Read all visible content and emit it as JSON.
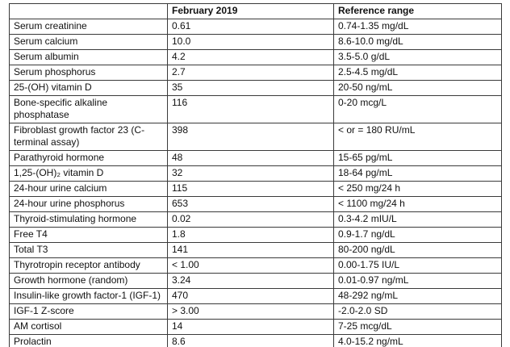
{
  "table": {
    "columns": [
      "",
      "February 2019",
      "Reference range"
    ],
    "rows": [
      {
        "label": "Serum creatinine",
        "value": "0.61",
        "ref": "0.74-1.35 mg/dL"
      },
      {
        "label": "Serum calcium",
        "value": "10.0",
        "ref": "8.6-10.0 mg/dL"
      },
      {
        "label": "Serum albumin",
        "value": "4.2",
        "ref": "3.5-5.0 g/dL"
      },
      {
        "label": "Serum phosphorus",
        "value": "2.7",
        "ref": "2.5-4.5 mg/dL"
      },
      {
        "label": "25-(OH) vitamin D",
        "value": "35",
        "ref": "20-50 ng/mL"
      },
      {
        "label": "Bone-specific alkaline phosphatase",
        "value": "116",
        "ref": "0-20 mcg/L"
      },
      {
        "label": "Fibroblast growth factor 23 (C-terminal assay)",
        "value": "398",
        "ref": "< or = 180 RU/mL"
      },
      {
        "label": "Parathyroid hormone",
        "value": "48",
        "ref": "15-65 pg/mL"
      },
      {
        "label": "1,25-(OH)₂ vitamin D",
        "value": "32",
        "ref": "18-64 pg/mL"
      },
      {
        "label": "24-hour urine calcium",
        "value": "115",
        "ref": "< 250 mg/24 h"
      },
      {
        "label": "24-hour urine phosphorus",
        "value": "653",
        "ref": "< 1100 mg/24 h"
      },
      {
        "label": "Thyroid-stimulating hormone",
        "value": "0.02",
        "ref": "0.3-4.2 mIU/L"
      },
      {
        "label": "Free T4",
        "value": "1.8",
        "ref": "0.9-1.7 ng/dL"
      },
      {
        "label": "Total T3",
        "value": "141",
        "ref": "80-200 ng/dL"
      },
      {
        "label": "Thyrotropin receptor antibody",
        "value": "< 1.00",
        "ref": "0.00-1.75 IU/L"
      },
      {
        "label": "Growth hormone (random)",
        "value": "3.24",
        "ref": "0.01-0.97 ng/mL"
      },
      {
        "label": "Insulin-like growth factor-1 (IGF-1)",
        "value": "470",
        "ref": "48-292 ng/mL"
      },
      {
        "label": "IGF-1 Z-score",
        "value": "> 3.00",
        "ref": "-2.0-2.0 SD"
      },
      {
        "label": "AM cortisol",
        "value": "14",
        "ref": "7-25 mcg/dL"
      },
      {
        "label": "Prolactin",
        "value": "8.6",
        "ref": "4.0-15.2 ng/mL"
      }
    ]
  }
}
